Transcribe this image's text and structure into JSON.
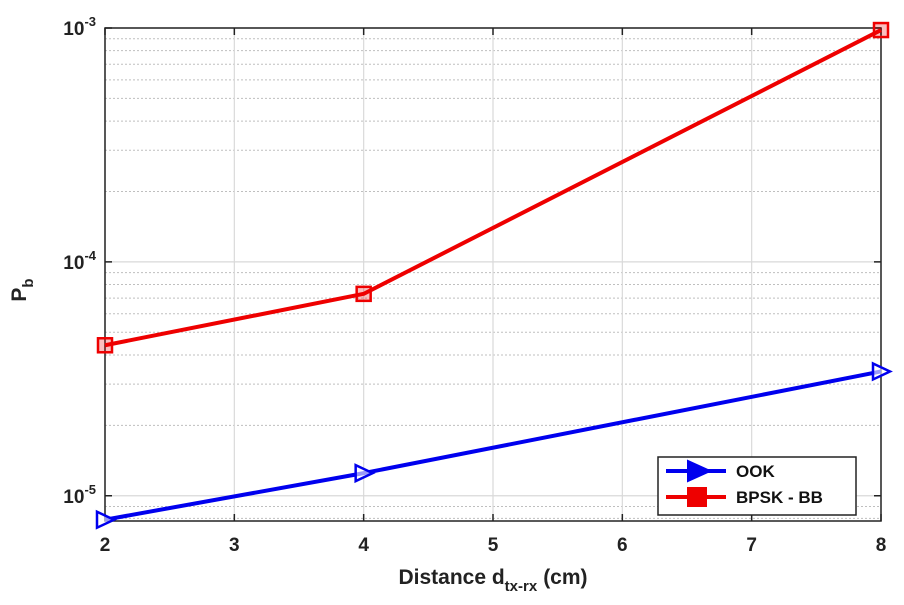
{
  "chart_data": {
    "type": "line",
    "title": "",
    "xlabel": {
      "main": "Distance d",
      "sub": "tx-rx",
      "unit": "(cm)"
    },
    "ylabel": {
      "main": "P",
      "sub": "b"
    },
    "xlim": [
      2,
      8
    ],
    "ylim": [
      7.8e-06,
      0.001
    ],
    "yscale": "log",
    "grid": true,
    "minor_grid": true,
    "legend_position": "bottom-right",
    "x_ticks": [
      {
        "value": 2,
        "label": "2"
      },
      {
        "value": 3,
        "label": "3"
      },
      {
        "value": 4,
        "label": "4"
      },
      {
        "value": 5,
        "label": "5"
      },
      {
        "value": 6,
        "label": "6"
      },
      {
        "value": 7,
        "label": "7"
      },
      {
        "value": 8,
        "label": "8"
      }
    ],
    "y_ticks": [
      {
        "value": 1e-05,
        "base": "10",
        "exp": "-5"
      },
      {
        "value": 0.0001,
        "base": "10",
        "exp": "-4"
      },
      {
        "value": 0.001,
        "base": "10",
        "exp": "-3"
      }
    ],
    "series": [
      {
        "name": "OOK",
        "color": "#0000ee",
        "marker": "triangle-right",
        "x": [
          2,
          4,
          8
        ],
        "y": [
          7.9e-06,
          1.25e-05,
          3.4e-05
        ]
      },
      {
        "name": "BPSK - BB",
        "color": "#ee0000",
        "marker": "square",
        "x": [
          2,
          4,
          8
        ],
        "y": [
          4.4e-05,
          7.3e-05,
          0.00098
        ]
      }
    ]
  }
}
